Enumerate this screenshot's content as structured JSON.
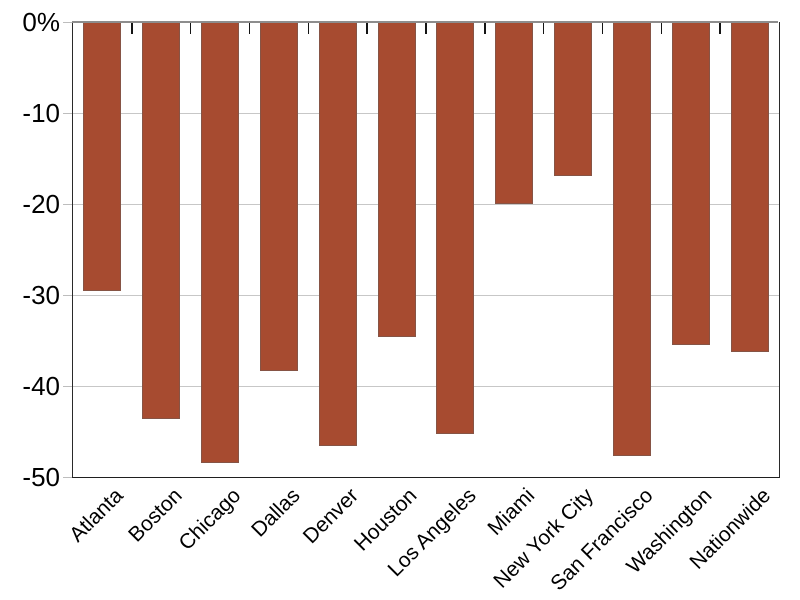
{
  "chart_data": {
    "type": "bar",
    "title": "",
    "xlabel": "",
    "ylabel": "",
    "categories": [
      "Atlanta",
      "Boston",
      "Chicago",
      "Dallas",
      "Denver",
      "Houston",
      "Los Angeles",
      "Miami",
      "New York City",
      "San Francisco",
      "Washington",
      "Nationwide"
    ],
    "values": [
      -29.6,
      -43.6,
      -48.5,
      -38.4,
      -46.6,
      -34.6,
      -45.3,
      -20.0,
      -17.0,
      -47.7,
      -35.5,
      -36.3
    ],
    "ylim": [
      -50,
      0
    ],
    "yticks": [
      0,
      -10,
      -20,
      -30,
      -40,
      -50
    ],
    "ytick_labels": [
      "0%",
      "-10",
      "-20",
      "-30",
      "-40",
      "-50"
    ],
    "grid": true,
    "legend": null,
    "colors": {
      "bar_fill": "#a74b30",
      "gridline": "#c7c7c7",
      "top_spine": "#8d8d8d",
      "dark_spine": "#2a2a2a",
      "top_tick": "#141414",
      "y_tick": "#bdbdbd",
      "label_text": "#000000",
      "background": "#ffffff"
    }
  }
}
